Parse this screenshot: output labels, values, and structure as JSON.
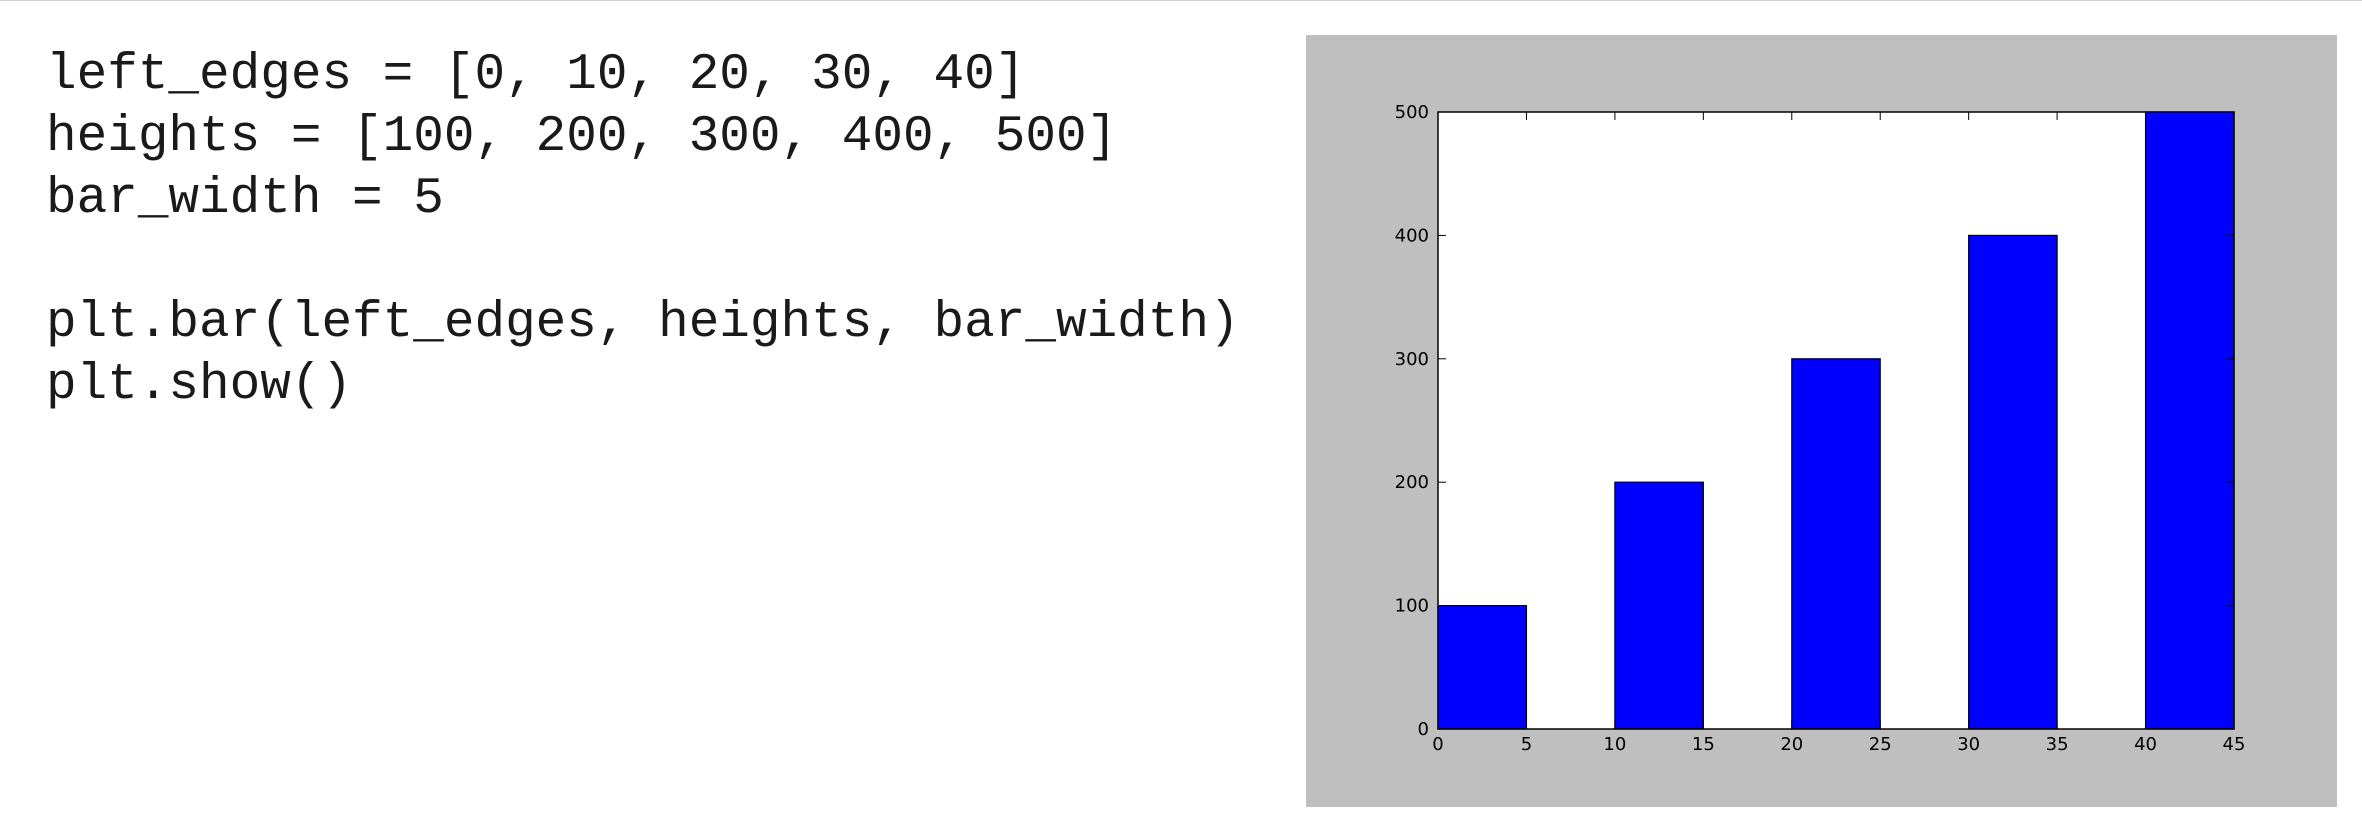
{
  "code": {
    "lines": [
      "left_edges = [0, 10, 20, 30, 40]",
      "heights = [100, 200, 300, 400, 500]",
      "bar_width = 5",
      "",
      "plt.bar(left_edges, heights, bar_width)",
      "plt.show()"
    ]
  },
  "chart_data": {
    "type": "bar",
    "title": "",
    "xlabel": "",
    "ylabel": "",
    "x": [
      0,
      10,
      20,
      30,
      40
    ],
    "bar_width": 5,
    "values": [
      100,
      200,
      300,
      400,
      500
    ],
    "xlim": [
      0,
      45
    ],
    "ylim": [
      0,
      500
    ],
    "xticks": [
      "0",
      "5",
      "10",
      "15",
      "20",
      "25",
      "30",
      "35",
      "40",
      "45"
    ],
    "yticks": [
      "0",
      "100",
      "200",
      "300",
      "400",
      "500"
    ],
    "grid": false,
    "legend": "none",
    "bar_color": "#0000ff",
    "figure_background": "#bfbfbf",
    "axes_background": "#ffffff"
  }
}
